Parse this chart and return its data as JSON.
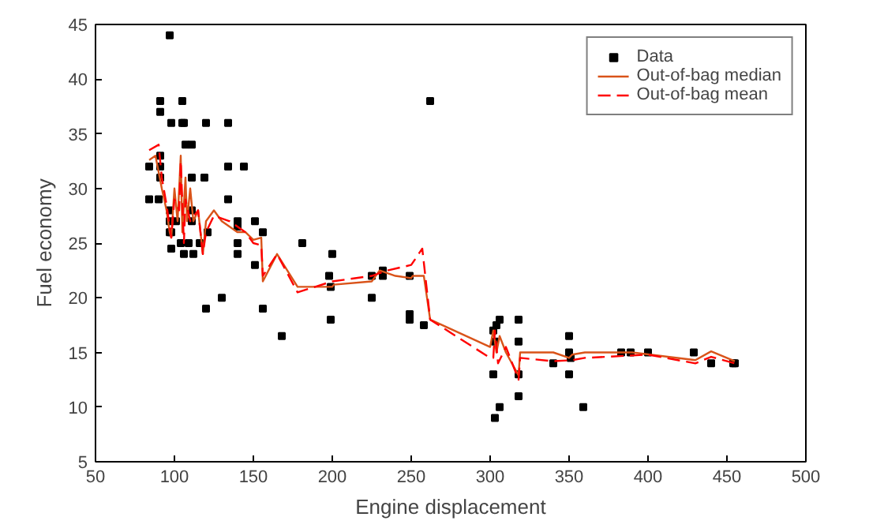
{
  "chart_data": {
    "type": "scatter",
    "xlabel": "Engine displacement",
    "ylabel": "Fuel economy",
    "xlim": [
      50,
      500
    ],
    "ylim": [
      5,
      45
    ],
    "xticks": [
      50,
      100,
      150,
      200,
      250,
      300,
      350,
      400,
      450,
      500
    ],
    "yticks": [
      5,
      10,
      15,
      20,
      25,
      30,
      35,
      40,
      45
    ],
    "grid": false,
    "legend": "top right",
    "series": [
      {
        "name": "Data",
        "marker": "square",
        "color": "#000000",
        "x": [
          97,
          91,
          105,
          91,
          98,
          105,
          106,
          120,
          134,
          107,
          111,
          91,
          84,
          91,
          134,
          144,
          111,
          119,
          91,
          84,
          90,
          97,
          111,
          97,
          101,
          111,
          134,
          140,
          140,
          151,
          98,
          97,
          121,
          156,
          104,
          109,
          116,
          98,
          106,
          112,
          140,
          140,
          151,
          130,
          120,
          156,
          262,
          181,
          200,
          198,
          225,
          232,
          232,
          249,
          199,
          225,
          199,
          249,
          249,
          258,
          168,
          306,
          304,
          302,
          318,
          303,
          318,
          350,
          350,
          351,
          340,
          383,
          389,
          400,
          429,
          440,
          454,
          455,
          302,
          318,
          350,
          318,
          306,
          303,
          359
        ],
        "values": [
          44,
          38,
          38,
          37,
          36,
          36,
          36,
          36,
          36,
          34,
          34,
          33,
          32,
          32,
          32,
          32,
          31,
          31,
          31,
          29,
          29,
          28,
          28,
          27,
          27,
          27,
          29,
          27,
          26.5,
          27,
          26,
          26,
          26,
          26,
          25,
          25,
          25,
          24.5,
          24,
          24,
          25,
          24,
          23,
          20,
          19,
          19,
          38,
          25,
          24,
          22,
          22,
          22.5,
          22,
          22,
          21,
          20,
          18,
          18.5,
          18,
          17.5,
          16.5,
          18,
          17.5,
          17,
          18,
          16,
          16,
          16.5,
          15,
          14.5,
          14,
          15,
          15,
          15,
          15,
          14,
          14,
          14,
          13,
          13,
          13,
          11,
          10,
          9,
          10
        ]
      },
      {
        "name": "Out-of-bag median",
        "type": "line",
        "line_style": "solid",
        "color": "#d95319",
        "x": [
          84,
          88,
          90,
          92,
          95,
          97,
          98,
          100,
          102,
          104,
          105,
          107,
          108,
          110,
          112,
          115,
          118,
          120,
          125,
          130,
          135,
          140,
          145,
          150,
          155,
          156,
          165,
          178,
          200,
          201,
          225,
          230,
          240,
          250,
          251,
          258,
          262,
          300,
          302,
          304,
          306,
          310,
          318,
          319,
          340,
          350,
          352,
          360,
          390,
          430,
          440,
          455
        ],
        "values": [
          32.6,
          33,
          31.5,
          30,
          28,
          26,
          25.5,
          30,
          27,
          33,
          26,
          31,
          27,
          30,
          27,
          28,
          24,
          27,
          28,
          27,
          26.5,
          26,
          26,
          25.3,
          25.5,
          21.5,
          24,
          21,
          21,
          21.2,
          21.5,
          22.5,
          22,
          21.8,
          22,
          22,
          18,
          15.5,
          17,
          15,
          16.5,
          15,
          12.9,
          15,
          15,
          14.5,
          14.8,
          15,
          15,
          14.3,
          15.1,
          14.2
        ]
      },
      {
        "name": "Out-of-bag mean",
        "type": "line",
        "line_style": "dashed",
        "color": "#ff0000",
        "x": [
          84,
          90,
          92,
          95,
          98,
          100,
          103,
          104,
          106,
          107,
          110,
          115,
          118,
          120,
          125,
          135,
          145,
          150,
          155,
          156,
          165,
          178,
          200,
          225,
          235,
          250,
          257,
          262,
          300,
          302,
          303,
          305,
          310,
          318,
          319,
          340,
          352,
          360,
          400,
          430,
          440,
          455
        ],
        "values": [
          33.5,
          34,
          31,
          28.5,
          25.5,
          29,
          28,
          32.5,
          25,
          29,
          27,
          28,
          24,
          26,
          27.5,
          27,
          26,
          25,
          24.8,
          22,
          24,
          20.5,
          21.5,
          22,
          22.5,
          23,
          24.5,
          18,
          14.5,
          14.5,
          17,
          14,
          15.5,
          12.5,
          14.5,
          14.2,
          14.3,
          14.5,
          14.8,
          14,
          14.6,
          14
        ]
      }
    ]
  }
}
